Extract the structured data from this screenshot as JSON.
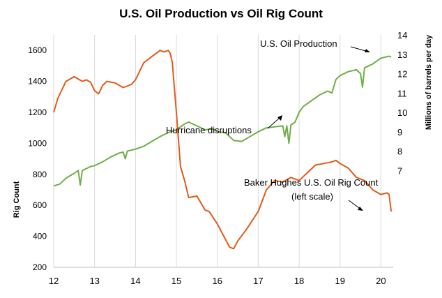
{
  "chart_data": {
    "type": "line",
    "title": "U.S. Oil Production vs Oil Rig Count",
    "xlabel": "",
    "x_ticks": [
      "12",
      "13",
      "14",
      "15",
      "16",
      "17",
      "18",
      "19",
      "20"
    ],
    "xlim": [
      12,
      20.3
    ],
    "left_axis": {
      "label": "Rig Count",
      "ylim": [
        200,
        1700
      ],
      "ticks": [
        "200",
        "400",
        "600",
        "800",
        "1000",
        "1200",
        "1400",
        "1600"
      ]
    },
    "right_axis": {
      "label": "Millions of barrels per day",
      "ylim": [
        2,
        14
      ],
      "ticks": [
        "7",
        "8",
        "9",
        "10",
        "11",
        "12",
        "13",
        "14"
      ]
    },
    "gridlines": "vertical",
    "series": [
      {
        "name": "U.S. Oil Production",
        "axis": "right",
        "color": "#70ad47",
        "x": [
          12.0,
          12.15,
          12.3,
          12.5,
          12.6,
          12.65,
          12.7,
          12.9,
          13.0,
          13.2,
          13.4,
          13.6,
          13.7,
          13.75,
          13.8,
          14.0,
          14.2,
          14.4,
          14.6,
          14.8,
          15.0,
          15.2,
          15.3,
          15.5,
          15.7,
          15.9,
          16.0,
          16.2,
          16.4,
          16.6,
          16.8,
          17.0,
          17.2,
          17.4,
          17.6,
          17.65,
          17.7,
          17.75,
          17.8,
          17.9,
          18.0,
          18.1,
          18.3,
          18.5,
          18.7,
          18.8,
          18.9,
          19.0,
          19.2,
          19.4,
          19.5,
          19.55,
          19.6,
          19.8,
          20.0,
          20.2,
          20.25
        ],
        "values": [
          6.2,
          6.3,
          6.6,
          6.85,
          7.0,
          6.25,
          7.0,
          7.2,
          7.25,
          7.45,
          7.7,
          7.9,
          7.95,
          7.6,
          8.0,
          8.1,
          8.25,
          8.5,
          8.75,
          8.95,
          9.1,
          9.4,
          9.5,
          9.3,
          9.1,
          9.15,
          9.0,
          8.95,
          8.55,
          8.5,
          8.75,
          9.0,
          9.2,
          9.25,
          9.3,
          8.75,
          9.3,
          8.4,
          9.35,
          9.5,
          10.0,
          10.3,
          10.6,
          10.9,
          11.1,
          11.0,
          11.7,
          11.9,
          12.1,
          12.2,
          12.0,
          11.3,
          12.3,
          12.5,
          12.8,
          12.9,
          12.85
        ]
      },
      {
        "name": "Baker Hughes U.S. Oil Rig Count",
        "axis": "left",
        "color": "#e05a1a",
        "x": [
          12.0,
          12.1,
          12.3,
          12.5,
          12.7,
          12.8,
          12.9,
          13.0,
          13.1,
          13.2,
          13.3,
          13.5,
          13.7,
          13.9,
          14.0,
          14.2,
          14.4,
          14.6,
          14.7,
          14.8,
          14.85,
          14.9,
          15.0,
          15.1,
          15.2,
          15.3,
          15.5,
          15.7,
          15.8,
          16.0,
          16.2,
          16.3,
          16.4,
          16.5,
          16.7,
          16.9,
          17.0,
          17.2,
          17.4,
          17.6,
          17.8,
          18.0,
          18.2,
          18.4,
          18.6,
          18.8,
          18.9,
          19.0,
          19.2,
          19.4,
          19.6,
          19.8,
          20.0,
          20.15,
          20.2,
          20.25
        ],
        "values": [
          1200,
          1290,
          1400,
          1430,
          1400,
          1410,
          1395,
          1340,
          1320,
          1375,
          1400,
          1390,
          1360,
          1380,
          1410,
          1520,
          1560,
          1600,
          1590,
          1600,
          1580,
          1520,
          1200,
          850,
          760,
          650,
          660,
          570,
          560,
          480,
          380,
          330,
          320,
          370,
          440,
          520,
          560,
          700,
          760,
          750,
          780,
          760,
          810,
          860,
          870,
          880,
          890,
          870,
          840,
          780,
          760,
          700,
          670,
          680,
          670,
          560
        ]
      }
    ],
    "annotations": [
      "U.S. Oil Production",
      "Hurricane disruptions",
      "Baker Hughes U.S. Oil Rig Count",
      "(left scale)"
    ]
  }
}
